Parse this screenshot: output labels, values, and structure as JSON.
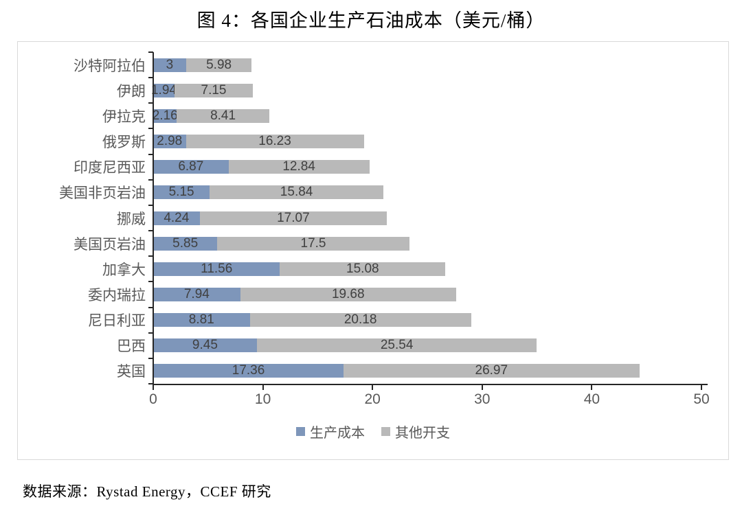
{
  "title": "图 4：各国企业生产石油成本（美元/桶）",
  "footer": "数据来源：Rystad Energy，CCEF 研究",
  "colors": {
    "production_cost": "#7E96BA",
    "other_expenses": "#B9B9B9",
    "value_label": "#404040",
    "category_label": "#595959",
    "axis": "#262626",
    "chart_border": "#D9D9D9"
  },
  "chart_data": {
    "type": "bar",
    "orientation": "horizontal",
    "stacked": true,
    "title": "图 4：各国企业生产石油成本（美元/桶）",
    "categories": [
      "沙特阿拉伯",
      "伊朗",
      "伊拉克",
      "俄罗斯",
      "印度尼西亚",
      "美国非页岩油",
      "挪威",
      "美国页岩油",
      "加拿大",
      "委内瑞拉",
      "尼日利亚",
      "巴西",
      "英国"
    ],
    "series": [
      {
        "name": "生产成本",
        "color": "#7E96BA",
        "values": [
          3,
          1.94,
          2.16,
          2.98,
          6.87,
          5.15,
          4.24,
          5.85,
          11.56,
          7.94,
          8.81,
          9.45,
          17.36
        ]
      },
      {
        "name": "其他开支",
        "color": "#B9B9B9",
        "values": [
          5.98,
          7.15,
          8.41,
          16.23,
          12.84,
          15.84,
          17.07,
          17.5,
          15.08,
          19.68,
          20.18,
          25.54,
          26.97
        ]
      }
    ],
    "xlim": [
      0,
      50
    ],
    "x_ticks": [
      0,
      10,
      20,
      30,
      40,
      50
    ],
    "value_labels": true,
    "legend_position": "bottom",
    "grid": false
  }
}
